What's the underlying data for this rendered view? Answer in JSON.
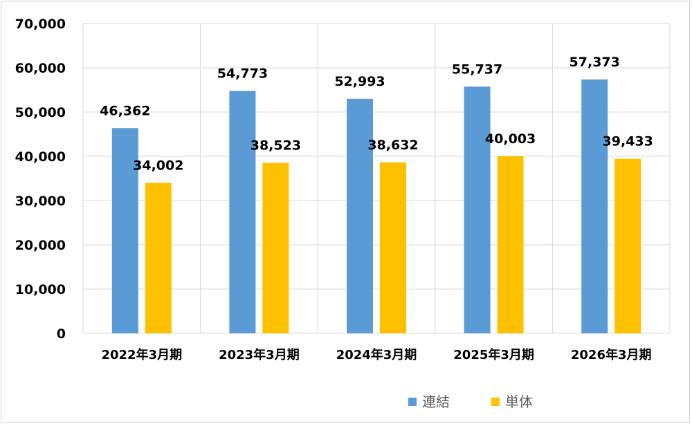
{
  "chart_data": {
    "type": "bar",
    "categories": [
      "2022年3月期",
      "2023年3月期",
      "2024年3月期",
      "2025年3月期",
      "2026年3月期"
    ],
    "series": [
      {
        "name": "連結",
        "color": "#5b9bd5",
        "values": [
          46362,
          54773,
          52993,
          55737,
          57373
        ],
        "labels": [
          "46,362",
          "54,773",
          "52,993",
          "55,737",
          "57,373"
        ]
      },
      {
        "name": "単体",
        "color": "#ffc000",
        "values": [
          34002,
          38523,
          38632,
          40003,
          39433
        ],
        "labels": [
          "34,002",
          "38,523",
          "38,632",
          "40,003",
          "39,433"
        ]
      }
    ],
    "ylim": [
      0,
      70000
    ],
    "yticks": [
      0,
      10000,
      20000,
      30000,
      40000,
      50000,
      60000,
      70000
    ],
    "ytick_labels": [
      "0",
      "10,000",
      "20,000",
      "30,000",
      "40,000",
      "50,000",
      "60,000",
      "70,000"
    ],
    "grid": true,
    "legend_position": "bottom"
  }
}
